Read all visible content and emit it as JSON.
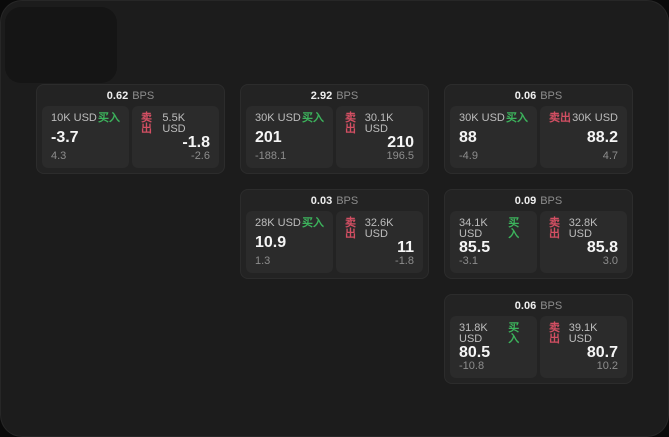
{
  "bps_unit": "BPS",
  "labels": {
    "buy": "买入",
    "sell": "卖出"
  },
  "colors": {
    "buy_green": "#3cb35c",
    "sell_red": "#d34f63",
    "window_bg": "#1c1c1c",
    "card_bg": "#232323",
    "panel_bg": "#2b2b2b"
  },
  "cards": [
    {
      "col": 1,
      "row": 1,
      "bps": "0.62",
      "buy": {
        "amount": "10K USD",
        "value": "-3.7",
        "sub": "4.3"
      },
      "sell": {
        "amount": "5.5K USD",
        "value": "-1.8",
        "sub": "-2.6"
      }
    },
    {
      "col": 2,
      "row": 1,
      "bps": "2.92",
      "buy": {
        "amount": "30K USD",
        "value": "201",
        "sub": "-188.1"
      },
      "sell": {
        "amount": "30.1K USD",
        "value": "210",
        "sub": "196.5"
      }
    },
    {
      "col": 3,
      "row": 1,
      "bps": "0.06",
      "buy": {
        "amount": "30K USD",
        "value": "88",
        "sub": "-4.9"
      },
      "sell": {
        "amount": "30K USD",
        "value": "88.2",
        "sub": "4.7"
      }
    },
    {
      "col": 2,
      "row": 2,
      "bps": "0.03",
      "buy": {
        "amount": "28K USD",
        "value": "10.9",
        "sub": "1.3"
      },
      "sell": {
        "amount": "32.6K USD",
        "value": "11",
        "sub": "-1.8"
      }
    },
    {
      "col": 3,
      "row": 2,
      "bps": "0.09",
      "buy": {
        "amount": "34.1K USD",
        "value": "85.5",
        "sub": "-3.1"
      },
      "sell": {
        "amount": "32.8K USD",
        "value": "85.8",
        "sub": "3.0"
      }
    },
    {
      "col": 3,
      "row": 3,
      "bps": "0.06",
      "buy": {
        "amount": "31.8K USD",
        "value": "80.5",
        "sub": "-10.8"
      },
      "sell": {
        "amount": "39.1K USD",
        "value": "80.7",
        "sub": "10.2"
      }
    }
  ]
}
